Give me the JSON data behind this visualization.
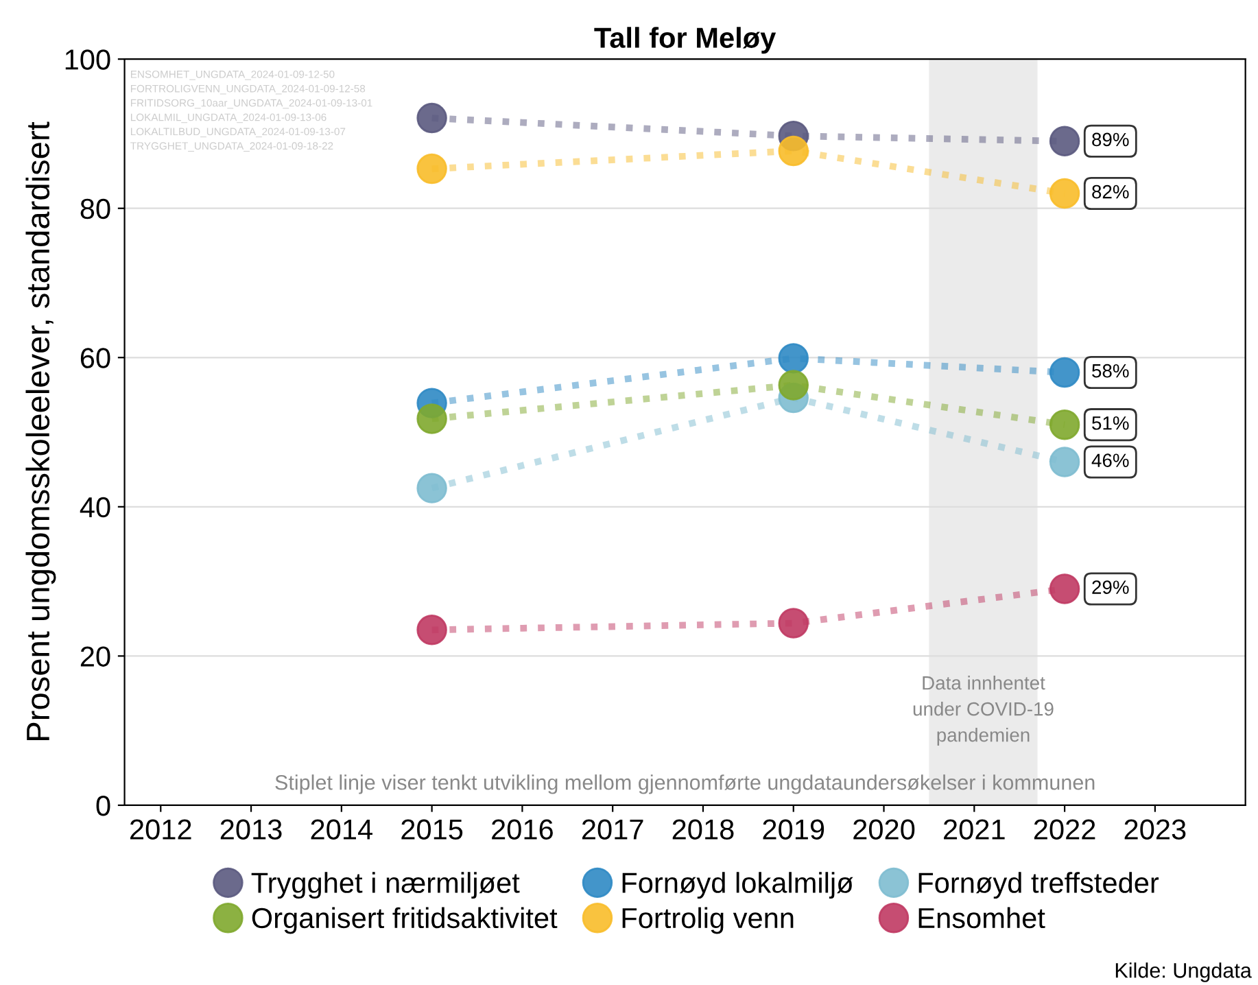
{
  "chart_data": {
    "type": "line",
    "title": "Tall for Meløy",
    "ylabel": "Prosent ungdomsskoleelever, standardisert",
    "x": [
      2015,
      2019,
      2022
    ],
    "series": [
      {
        "name": "Trygghet i nærmiljøet",
        "color": "#5b5a80",
        "values": [
          92.1,
          89.7,
          89
        ],
        "value_labels": [
          null,
          null,
          "89%"
        ]
      },
      {
        "name": "Fornøyd lokalmiljø",
        "color": "#2f8ac4",
        "values": [
          53.9,
          59.9,
          58
        ],
        "value_labels": [
          null,
          null,
          "58%"
        ]
      },
      {
        "name": "Fornøyd treffsteder",
        "color": "#7ebcd0",
        "values": [
          42.5,
          54.6,
          46
        ],
        "value_labels": [
          null,
          null,
          "46%"
        ]
      },
      {
        "name": "Organisert fritidsaktivitet",
        "color": "#80a82d",
        "values": [
          51.8,
          56.3,
          51
        ],
        "value_labels": [
          null,
          null,
          "51%"
        ]
      },
      {
        "name": "Fortrolig venn",
        "color": "#f8bc2a",
        "values": [
          85.3,
          87.7,
          82
        ],
        "value_labels": [
          null,
          null,
          "82%"
        ]
      },
      {
        "name": "Ensomhet",
        "color": "#c03a63",
        "values": [
          23.5,
          24.4,
          29
        ],
        "value_labels": [
          null,
          null,
          "29%"
        ]
      }
    ],
    "xlim": [
      2011.6,
      2024.0
    ],
    "ylim": [
      0,
      100
    ],
    "xticks": [
      2012,
      2013,
      2014,
      2015,
      2016,
      2017,
      2018,
      2019,
      2020,
      2021,
      2022,
      2023
    ],
    "yticks": [
      0,
      20,
      40,
      60,
      80,
      100
    ],
    "bands": [
      {
        "axis": "x",
        "from": 2020.5,
        "to": 2021.7,
        "label": "Data innhentet\nunder COVID-19\npandemien",
        "color": "#ebebeb"
      }
    ],
    "annotations": [
      "ENSOMHET_UNGDATA_2024-01-09-12-50\nFORTROLIGVENN_UNGDATA_2024-01-09-12-58\nFRITIDSORG_10aar_UNGDATA_2024-01-09-13-01\nLOKALMIL_UNGDATA_2024-01-09-13-06\nLOKALTILBUD_UNGDATA_2024-01-09-13-07\nTRYGGHET_UNGDATA_2024-01-09-18-22",
      "Stiplet linje viser tenkt utvikling mellom gjennomførte ungdataundersøkelser i kommunen",
      "Kilde: Ungdata"
    ],
    "grid": "y",
    "legend": "bottom",
    "marker": "circle",
    "line_style": "dotted"
  }
}
